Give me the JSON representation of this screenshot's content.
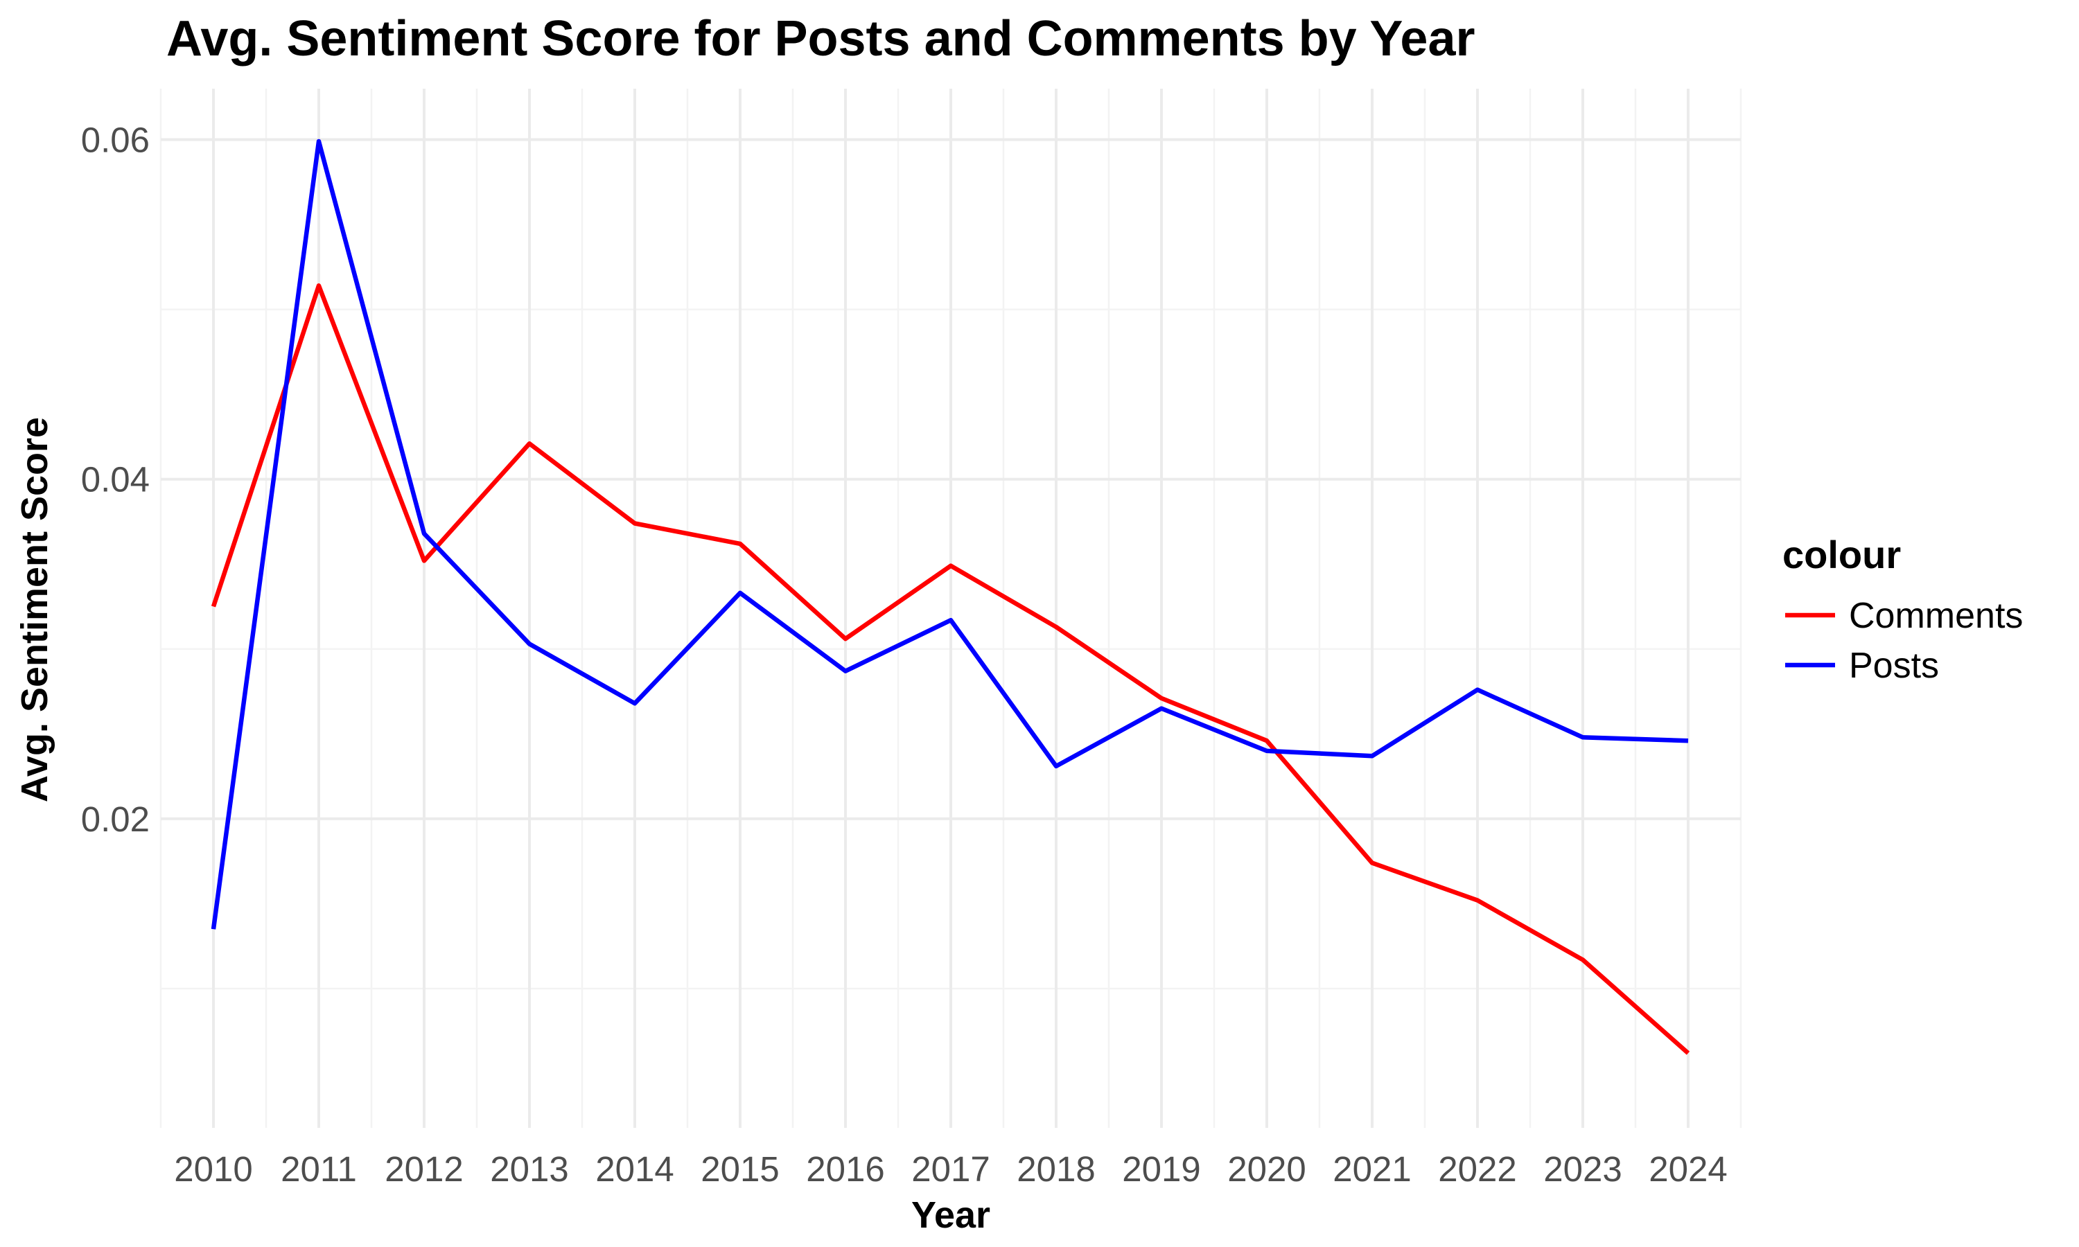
{
  "chart_data": {
    "type": "line",
    "title": "Avg. Sentiment Score for Posts and Comments by Year",
    "xlabel": "Year",
    "ylabel": "Avg. Sentiment Score",
    "x": [
      2010,
      2011,
      2012,
      2013,
      2014,
      2015,
      2016,
      2017,
      2018,
      2019,
      2020,
      2021,
      2022,
      2023,
      2024
    ],
    "xlim": [
      2009.5,
      2024.5
    ],
    "ylim": [
      0.0018,
      0.063
    ],
    "y_ticks": [
      0.02,
      0.04,
      0.06
    ],
    "y_tick_labels": [
      "0.02",
      "0.04",
      "0.06"
    ],
    "grid": true,
    "legend": {
      "title": "colour",
      "position": "right"
    },
    "series": [
      {
        "name": "Comments",
        "color": "#ff0000",
        "values": [
          0.0325,
          0.0514,
          0.0352,
          0.0421,
          0.0374,
          0.0362,
          0.0306,
          0.0349,
          0.0313,
          0.0271,
          0.0246,
          0.0174,
          0.0152,
          0.0117,
          0.0062
        ]
      },
      {
        "name": "Posts",
        "color": "#0000ff",
        "values": [
          0.0135,
          0.0599,
          0.0368,
          0.0303,
          0.0268,
          0.0333,
          0.0287,
          0.0317,
          0.0231,
          0.0265,
          0.024,
          0.0237,
          0.0276,
          0.0248,
          0.0246
        ]
      }
    ]
  }
}
